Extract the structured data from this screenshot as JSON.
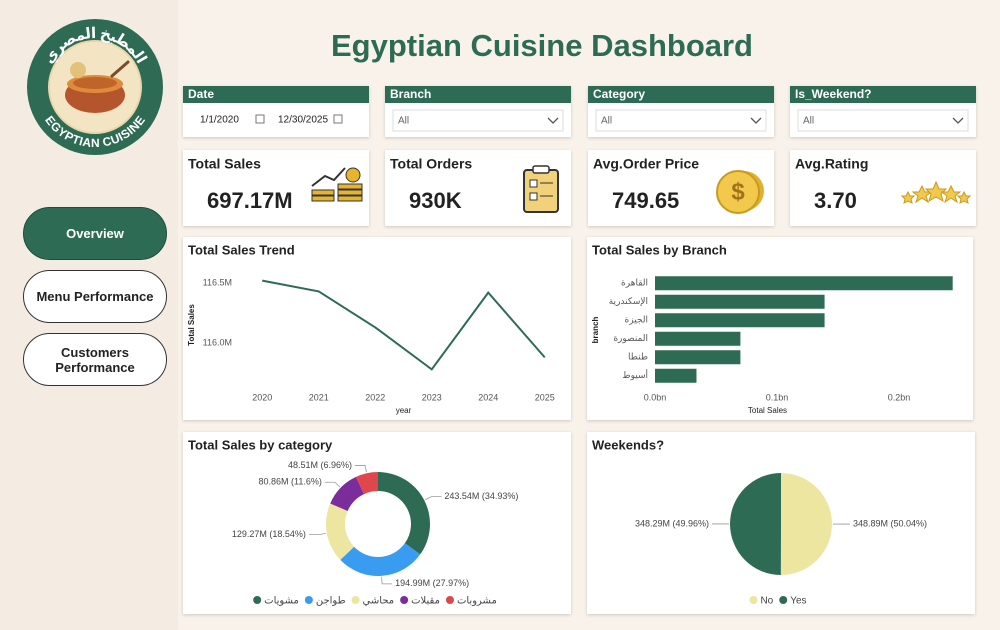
{
  "header": {
    "title": "Egyptian Cuisine Dashboard",
    "logo_top": "المطبخ المصري",
    "logo_bottom": "EGYPTIAN CUISINE"
  },
  "nav": [
    "Overview",
    "Menu Performance",
    "Customers Performance"
  ],
  "filters": [
    {
      "label": "Date",
      "from": "1/1/2020",
      "to": "12/30/2025"
    },
    {
      "label": "Branch",
      "value": "All"
    },
    {
      "label": "Category",
      "value": "All"
    },
    {
      "label": "Is_Weekend?",
      "value": "All"
    }
  ],
  "kpis": [
    {
      "label": "Total Sales",
      "value": "697.17M"
    },
    {
      "label": "Total Orders",
      "value": "930K"
    },
    {
      "label": "Avg.Order Price",
      "value": "749.65"
    },
    {
      "label": "Avg.Rating",
      "value": "3.70"
    }
  ],
  "chart_data": [
    {
      "type": "line",
      "title": "Total Sales Trend",
      "x_label": "year",
      "y_label": "Total Sales",
      "categories": [
        "2020",
        "2021",
        "2022",
        "2023",
        "2024",
        "2025"
      ],
      "values": [
        116.52,
        116.43,
        116.13,
        115.78,
        116.42,
        115.88
      ],
      "color": "#2e6b55",
      "ylim": [
        115.65,
        116.65
      ],
      "yticks": [
        {
          "value": 116.0,
          "label": "116.0M"
        },
        {
          "value": 116.5,
          "label": "116.5M"
        }
      ]
    },
    {
      "type": "hbar",
      "title": "Total Sales by Branch",
      "x_label": "Total Sales",
      "y_label": "branch",
      "categories": [
        "القاهرة",
        "الإسكندرية",
        "الجيزة",
        "المنصورة",
        "طنطا",
        "أسيوط"
      ],
      "values": [
        0.244,
        0.139,
        0.139,
        0.07,
        0.07,
        0.034
      ],
      "color": "#2e6b55",
      "xlim": [
        0,
        0.25
      ],
      "xticks": [
        {
          "value": 0,
          "label": "0.0bn"
        },
        {
          "value": 0.1,
          "label": "0.1bn"
        },
        {
          "value": 0.2,
          "label": "0.2bn"
        }
      ]
    },
    {
      "type": "donut",
      "title": "Total Sales by category",
      "categories": [
        "مشويات",
        "طواجن",
        "محاشي",
        "مقبلات",
        "مشروبات"
      ],
      "values": [
        243.54,
        194.99,
        129.27,
        80.86,
        48.51
      ],
      "value_labels": [
        "243.54M (34.93%)",
        "194.99M (27.97%)",
        "129.27M (18.54%)",
        "80.86M (11.6%)",
        "48.51M (6.96%)"
      ],
      "colors": [
        "#2e6b55",
        "#3a9cf0",
        "#ece6a0",
        "#7b2d9c",
        "#e0474c"
      ]
    },
    {
      "type": "pie",
      "title": "Weekends?",
      "categories": [
        "No",
        "Yes"
      ],
      "values": [
        348.89,
        348.29
      ],
      "value_labels": [
        "348.89M (50.04%)",
        "348.29M (49.96%)"
      ],
      "colors": [
        "#ece6a0",
        "#2e6b55"
      ]
    }
  ]
}
